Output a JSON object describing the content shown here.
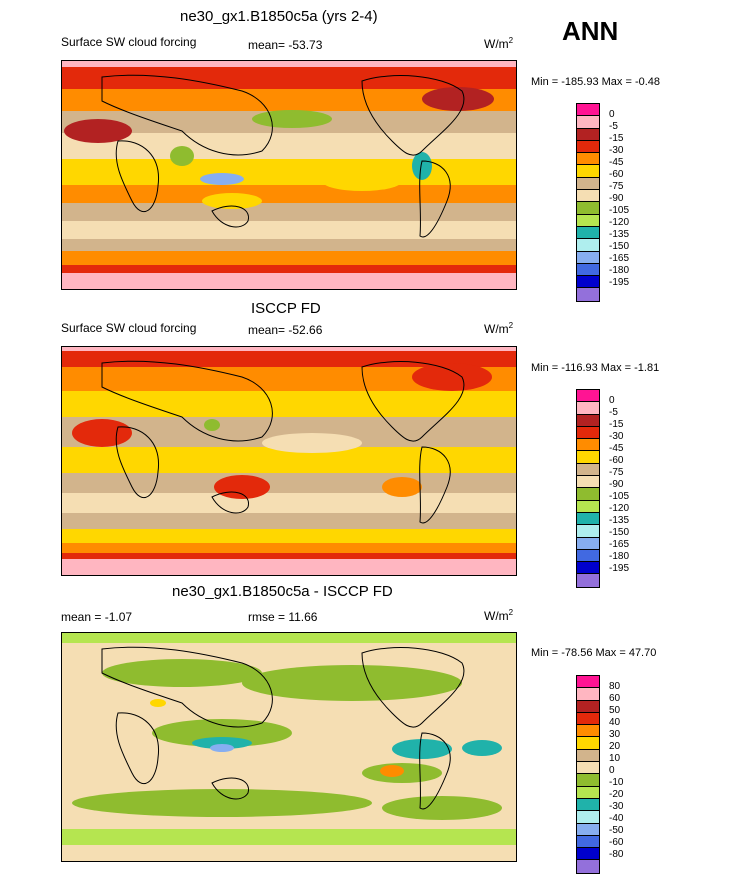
{
  "season": "ANN",
  "units": "W/m",
  "units_sup": "2",
  "panels": [
    {
      "title": "ne30_gx1.B1850c5a (yrs 2-4)",
      "label_left": "Surface SW cloud forcing",
      "label_center": "mean= -53.73",
      "minmax": "Min = -185.93 Max =  -0.48",
      "legend": [
        "0",
        "-5",
        "-15",
        "-30",
        "-45",
        "-60",
        "-75",
        "-90",
        "-105",
        "-120",
        "-135",
        "-150",
        "-165",
        "-180",
        "-195"
      ],
      "base": "#ffffff"
    },
    {
      "title": "ISCCP FD",
      "label_left": "Surface SW cloud forcing",
      "label_center": "mean= -52.66",
      "minmax": "Min = -116.93 Max =  -1.81",
      "legend": [
        "0",
        "-5",
        "-15",
        "-30",
        "-45",
        "-60",
        "-75",
        "-90",
        "-105",
        "-120",
        "-135",
        "-150",
        "-165",
        "-180",
        "-195"
      ]
    },
    {
      "title": "ne30_gx1.B1850c5a - ISCCP FD",
      "label_left": "mean =  -1.07",
      "label_center": "rmse =  11.66",
      "minmax": "Min = -78.56 Max =  47.70",
      "legend": [
        "80",
        "60",
        "50",
        "40",
        "30",
        "20",
        "10",
        "0",
        "-10",
        "-20",
        "-30",
        "-40",
        "-50",
        "-60",
        "-80"
      ]
    }
  ],
  "colors": {
    "palette": [
      "#ff1493",
      "#ffb6c1",
      "#b22222",
      "#e3290b",
      "#ff8c00",
      "#ffd700",
      "#d2b48c",
      "#f5deb3",
      "#8fbc2f",
      "#b5e550",
      "#20b2aa",
      "#afeeee",
      "#87aef0",
      "#4169e1",
      "#0000cd",
      "#9370db"
    ]
  }
}
